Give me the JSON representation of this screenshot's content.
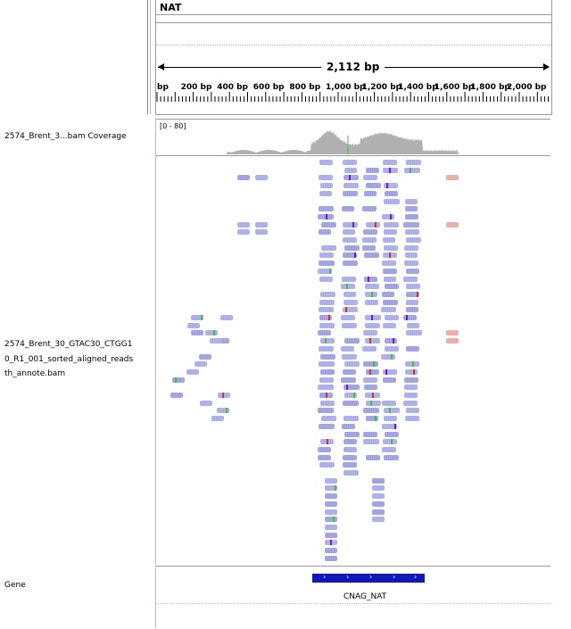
{
  "ruler": {
    "locus": "NAT",
    "span": "2,112 bp",
    "ticks": [
      "bp",
      "200 bp",
      "400 bp",
      "600 bp",
      "800 bp",
      "1,000 bp",
      "1,200 bp",
      "1,400 bp",
      "1,600 bp",
      "1,800 bp",
      "2,000 bp"
    ]
  },
  "coverage": {
    "track_name": "2574_Brent_3...bam Coverage",
    "range": "[0 - 80]"
  },
  "alignment": {
    "track_name": "2574_Brent_30_GTAC30_CTGG10_R1_001_sorted_aligned_readswith_annote.bam",
    "label_lines": [
      "2574_Brent_30_GTAC30_CTGG1",
      "0_R1_001_sorted_aligned_reads",
      "th_annote.bam"
    ]
  },
  "gene": {
    "track_name": "Gene",
    "feature_name": "CNAG_NAT"
  },
  "colors": {
    "read": "#aaaae8",
    "coverage": "#b0b0b0",
    "gene": "#0f19b8",
    "mismatch_insert": "#7a16c8"
  }
}
